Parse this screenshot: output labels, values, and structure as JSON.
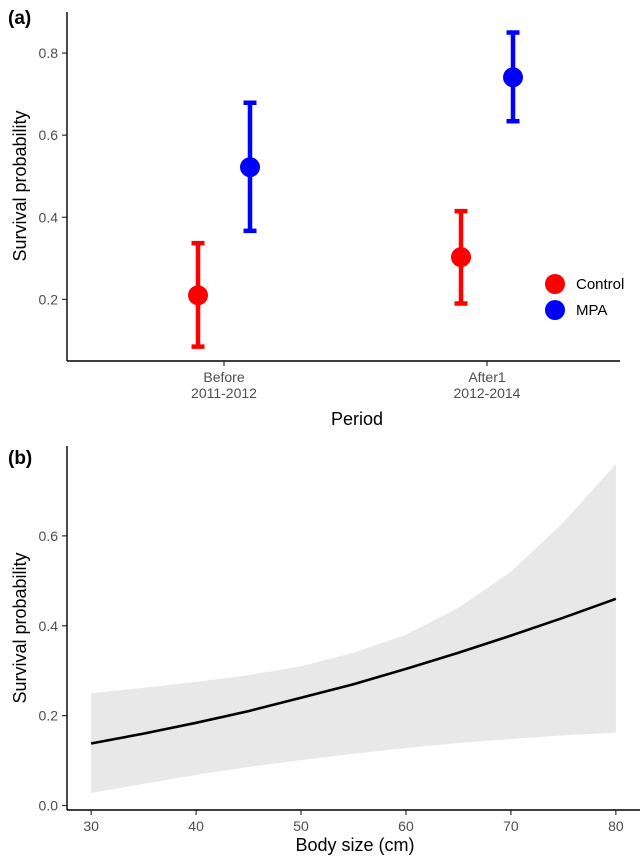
{
  "chart_data": [
    {
      "panel": "(a)",
      "type": "scatter",
      "subtype": "point-with-errorbars",
      "xlabel": "Period",
      "ylabel": "Survival probability",
      "categories": [
        [
          "Before",
          "2011-2012"
        ],
        [
          "After1",
          "2012-2014"
        ]
      ],
      "yticks": [
        0.2,
        0.4,
        0.6,
        0.8
      ],
      "ylim": [
        0.05,
        0.9
      ],
      "grid": false,
      "legend_position": "right",
      "series": [
        {
          "name": "Control",
          "color": "#ff0000",
          "points": [
            {
              "category": 0,
              "y": 0.21,
              "lower": 0.085,
              "upper": 0.337
            },
            {
              "category": 1,
              "y": 0.303,
              "lower": 0.19,
              "upper": 0.415
            }
          ]
        },
        {
          "name": "MPA",
          "color": "#0000ff",
          "points": [
            {
              "category": 0,
              "y": 0.522,
              "lower": 0.367,
              "upper": 0.679
            },
            {
              "category": 1,
              "y": 0.741,
              "lower": 0.634,
              "upper": 0.85
            }
          ]
        }
      ]
    },
    {
      "panel": "(b)",
      "type": "line",
      "subtype": "line-with-confidence-band",
      "xlabel": "Body size (cm)",
      "ylabel": "Survival probability",
      "xticks": [
        30,
        40,
        50,
        60,
        70,
        80
      ],
      "yticks": [
        0.0,
        0.2,
        0.4,
        0.6
      ],
      "xlim": [
        27.7,
        82.3
      ],
      "ylim": [
        -0.01,
        0.8
      ],
      "grid": false,
      "line_color": "#000000",
      "band_color": "#e8e8e8",
      "x": [
        30,
        35,
        40,
        45,
        50,
        55,
        60,
        65,
        70,
        75,
        80
      ],
      "y": [
        0.138,
        0.16,
        0.184,
        0.21,
        0.24,
        0.27,
        0.304,
        0.34,
        0.378,
        0.418,
        0.46
      ],
      "lower": [
        0.028,
        0.048,
        0.068,
        0.086,
        0.101,
        0.115,
        0.128,
        0.139,
        0.148,
        0.156,
        0.162
      ],
      "upper": [
        0.25,
        0.262,
        0.275,
        0.29,
        0.31,
        0.34,
        0.38,
        0.44,
        0.52,
        0.63,
        0.76
      ]
    }
  ]
}
